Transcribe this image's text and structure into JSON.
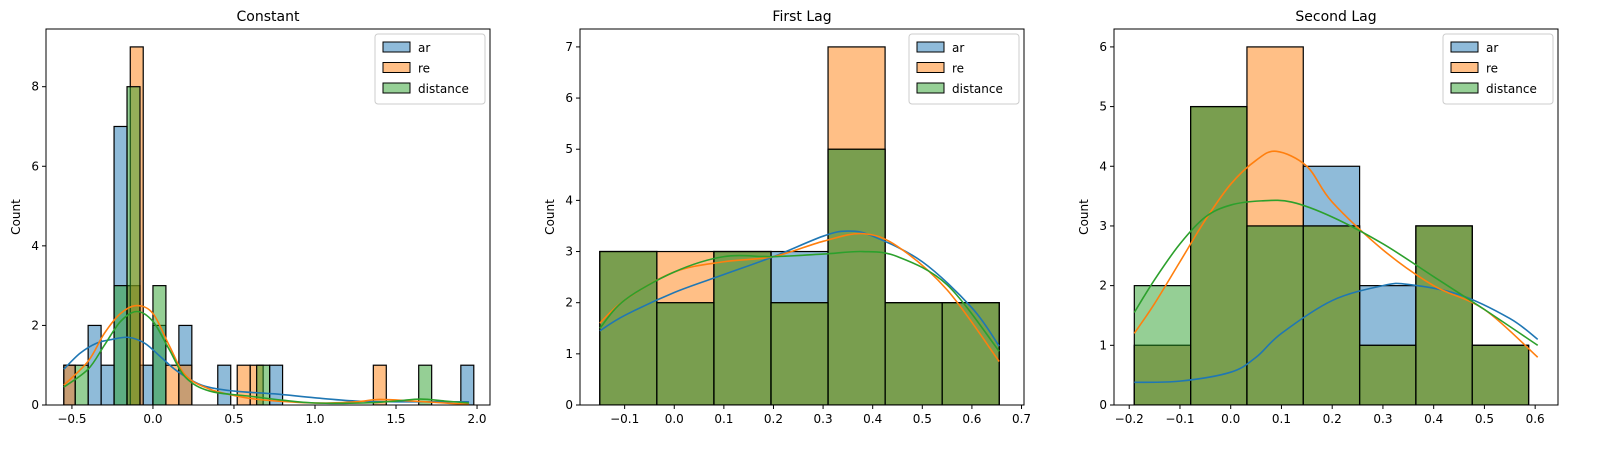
{
  "chart_data": [
    {
      "type": "histogram",
      "title": "Constant",
      "xlabel": "",
      "ylabel": "Count",
      "xlim": [
        -0.66,
        2.08
      ],
      "ylim": [
        0,
        9.45
      ],
      "xticks": [
        -0.5,
        0.0,
        0.5,
        1.0,
        1.5,
        2.0
      ],
      "yticks": [
        0,
        2,
        4,
        6,
        8
      ],
      "legend": "top-right",
      "series": [
        {
          "name": "ar",
          "color": "#1f77b4",
          "bins": [
            [
              -0.55,
              -0.48,
              1
            ],
            [
              -0.4,
              -0.32,
              2
            ],
            [
              -0.32,
              -0.24,
              1
            ],
            [
              -0.24,
              -0.16,
              7
            ],
            [
              -0.16,
              -0.08,
              3
            ],
            [
              -0.08,
              0.0,
              1
            ],
            [
              0.0,
              0.08,
              2
            ],
            [
              0.16,
              0.24,
              2
            ],
            [
              0.4,
              0.48,
              1
            ],
            [
              0.72,
              0.8,
              1
            ],
            [
              1.9,
              1.98,
              1
            ]
          ],
          "kde": [
            [
              -0.55,
              0.9
            ],
            [
              -0.45,
              1.3
            ],
            [
              -0.35,
              1.55
            ],
            [
              -0.25,
              1.65
            ],
            [
              -0.15,
              1.7
            ],
            [
              -0.05,
              1.55
            ],
            [
              0.05,
              1.2
            ],
            [
              0.15,
              0.85
            ],
            [
              0.3,
              0.5
            ],
            [
              0.5,
              0.35
            ],
            [
              0.75,
              0.28
            ],
            [
              1.0,
              0.18
            ],
            [
              1.25,
              0.1
            ],
            [
              1.5,
              0.08
            ],
            [
              1.75,
              0.08
            ],
            [
              1.95,
              0.08
            ]
          ]
        },
        {
          "name": "re",
          "color": "#ff7f0e",
          "bins": [
            [
              -0.55,
              -0.48,
              1
            ],
            [
              -0.16,
              -0.08,
              3
            ],
            [
              -0.14,
              -0.06,
              9
            ],
            [
              0.08,
              0.16,
              1
            ],
            [
              0.16,
              0.24,
              1
            ],
            [
              0.52,
              0.6,
              1
            ],
            [
              0.6,
              0.68,
              1
            ],
            [
              1.36,
              1.44,
              1
            ]
          ],
          "kde": [
            [
              -0.55,
              0.5
            ],
            [
              -0.4,
              1.1
            ],
            [
              -0.3,
              1.8
            ],
            [
              -0.2,
              2.3
            ],
            [
              -0.1,
              2.5
            ],
            [
              0.0,
              2.3
            ],
            [
              0.1,
              1.5
            ],
            [
              0.2,
              0.75
            ],
            [
              0.35,
              0.4
            ],
            [
              0.55,
              0.2
            ],
            [
              0.7,
              0.12
            ],
            [
              1.0,
              0.05
            ],
            [
              1.25,
              0.08
            ],
            [
              1.4,
              0.14
            ],
            [
              1.6,
              0.1
            ],
            [
              1.8,
              0.05
            ],
            [
              1.95,
              0.02
            ]
          ]
        },
        {
          "name": "distance",
          "color": "#2ca02c",
          "bins": [
            [
              -0.48,
              -0.4,
              1
            ],
            [
              -0.24,
              -0.16,
              3
            ],
            [
              -0.16,
              -0.08,
              8
            ],
            [
              0.0,
              0.08,
              3
            ],
            [
              0.64,
              0.72,
              1
            ],
            [
              1.64,
              1.72,
              1
            ]
          ],
          "kde": [
            [
              -0.55,
              0.45
            ],
            [
              -0.4,
              0.9
            ],
            [
              -0.3,
              1.5
            ],
            [
              -0.2,
              2.1
            ],
            [
              -0.1,
              2.35
            ],
            [
              0.0,
              2.1
            ],
            [
              0.1,
              1.4
            ],
            [
              0.2,
              0.7
            ],
            [
              0.35,
              0.35
            ],
            [
              0.6,
              0.22
            ],
            [
              0.8,
              0.12
            ],
            [
              1.0,
              0.05
            ],
            [
              1.3,
              0.05
            ],
            [
              1.5,
              0.1
            ],
            [
              1.65,
              0.15
            ],
            [
              1.8,
              0.1
            ],
            [
              1.95,
              0.05
            ]
          ]
        }
      ]
    },
    {
      "type": "histogram",
      "title": "First Lag",
      "xlabel": "",
      "ylabel": "Count",
      "xlim": [
        -0.19,
        0.705
      ],
      "ylim": [
        0,
        7.35
      ],
      "xticks": [
        -0.1,
        0.0,
        0.1,
        0.2,
        0.3,
        0.4,
        0.5,
        0.6,
        0.7
      ],
      "yticks": [
        0,
        1,
        2,
        3,
        4,
        5,
        6,
        7
      ],
      "legend": "top-right",
      "series": [
        {
          "name": "ar",
          "color": "#1f77b4",
          "bins": [
            [
              -0.15,
              -0.035,
              3
            ],
            [
              -0.035,
              0.08,
              2
            ],
            [
              0.08,
              0.195,
              3
            ],
            [
              0.195,
              0.31,
              3
            ],
            [
              0.31,
              0.425,
              5
            ],
            [
              0.425,
              0.54,
              2
            ],
            [
              0.54,
              0.655,
              2
            ]
          ],
          "kde": [
            [
              -0.15,
              1.45
            ],
            [
              -0.1,
              1.75
            ],
            [
              0.0,
              2.2
            ],
            [
              0.1,
              2.55
            ],
            [
              0.2,
              2.9
            ],
            [
              0.3,
              3.3
            ],
            [
              0.35,
              3.4
            ],
            [
              0.4,
              3.3
            ],
            [
              0.5,
              2.8
            ],
            [
              0.6,
              1.9
            ],
            [
              0.655,
              1.15
            ]
          ]
        },
        {
          "name": "re",
          "color": "#ff7f0e",
          "bins": [
            [
              -0.15,
              -0.035,
              3
            ],
            [
              -0.035,
              0.08,
              3
            ],
            [
              0.08,
              0.195,
              3
            ],
            [
              0.195,
              0.31,
              2
            ],
            [
              0.31,
              0.425,
              7
            ],
            [
              0.425,
              0.54,
              2
            ],
            [
              0.54,
              0.655,
              2
            ]
          ],
          "kde": [
            [
              -0.15,
              1.6
            ],
            [
              -0.1,
              2.05
            ],
            [
              0.0,
              2.6
            ],
            [
              0.1,
              2.8
            ],
            [
              0.2,
              2.9
            ],
            [
              0.3,
              3.2
            ],
            [
              0.38,
              3.35
            ],
            [
              0.45,
              3.1
            ],
            [
              0.55,
              2.25
            ],
            [
              0.655,
              0.85
            ]
          ]
        },
        {
          "name": "distance",
          "color": "#2ca02c",
          "bins": [
            [
              -0.15,
              -0.035,
              3
            ],
            [
              -0.035,
              0.08,
              2
            ],
            [
              0.08,
              0.195,
              3
            ],
            [
              0.195,
              0.31,
              2
            ],
            [
              0.31,
              0.425,
              5
            ],
            [
              0.425,
              0.54,
              2
            ],
            [
              0.54,
              0.655,
              2
            ]
          ],
          "kde": [
            [
              -0.15,
              1.5
            ],
            [
              -0.1,
              2.05
            ],
            [
              0.0,
              2.6
            ],
            [
              0.1,
              2.9
            ],
            [
              0.2,
              2.9
            ],
            [
              0.3,
              2.95
            ],
            [
              0.38,
              3.0
            ],
            [
              0.45,
              2.9
            ],
            [
              0.55,
              2.35
            ],
            [
              0.655,
              1.05
            ]
          ]
        }
      ]
    },
    {
      "type": "histogram",
      "title": "Second Lag",
      "xlabel": "",
      "ylabel": "Count",
      "xlim": [
        -0.23,
        0.645
      ],
      "ylim": [
        0,
        6.3
      ],
      "xticks": [
        -0.2,
        -0.1,
        0.0,
        0.1,
        0.2,
        0.3,
        0.4,
        0.5,
        0.6
      ],
      "yticks": [
        0,
        1,
        2,
        3,
        4,
        5,
        6
      ],
      "legend": "top-right",
      "series": [
        {
          "name": "ar",
          "color": "#1f77b4",
          "bins": [
            [
              -0.19,
              -0.079,
              1
            ],
            [
              -0.079,
              0.032,
              5
            ],
            [
              0.032,
              0.143,
              3
            ],
            [
              0.143,
              0.254,
              4
            ],
            [
              0.254,
              0.365,
              2
            ],
            [
              0.365,
              0.476,
              3
            ],
            [
              0.476,
              0.587,
              1
            ]
          ],
          "kde": [
            [
              -0.19,
              0.38
            ],
            [
              -0.1,
              0.4
            ],
            [
              0.0,
              0.55
            ],
            [
              0.05,
              0.8
            ],
            [
              0.1,
              1.2
            ],
            [
              0.2,
              1.75
            ],
            [
              0.3,
              2.0
            ],
            [
              0.35,
              2.02
            ],
            [
              0.45,
              1.85
            ],
            [
              0.55,
              1.45
            ],
            [
              0.605,
              1.1
            ]
          ]
        },
        {
          "name": "re",
          "color": "#ff7f0e",
          "bins": [
            [
              -0.19,
              -0.079,
              1
            ],
            [
              -0.079,
              0.032,
              5
            ],
            [
              0.032,
              0.143,
              6
            ],
            [
              0.143,
              0.254,
              3
            ],
            [
              0.254,
              0.365,
              1
            ],
            [
              0.365,
              0.476,
              3
            ],
            [
              0.476,
              0.587,
              1
            ]
          ],
          "kde": [
            [
              -0.19,
              1.2
            ],
            [
              -0.15,
              1.7
            ],
            [
              -0.1,
              2.4
            ],
            [
              -0.05,
              3.1
            ],
            [
              0.0,
              3.7
            ],
            [
              0.05,
              4.1
            ],
            [
              0.09,
              4.25
            ],
            [
              0.15,
              4.0
            ],
            [
              0.2,
              3.4
            ],
            [
              0.3,
              2.6
            ],
            [
              0.4,
              2.0
            ],
            [
              0.5,
              1.6
            ],
            [
              0.605,
              0.8
            ]
          ]
        },
        {
          "name": "distance",
          "color": "#2ca02c",
          "bins": [
            [
              -0.19,
              -0.079,
              2
            ],
            [
              -0.079,
              0.032,
              5
            ],
            [
              0.032,
              0.143,
              3
            ],
            [
              0.143,
              0.254,
              3
            ],
            [
              0.254,
              0.365,
              1
            ],
            [
              0.365,
              0.476,
              3
            ],
            [
              0.476,
              0.587,
              1
            ]
          ],
          "kde": [
            [
              -0.19,
              1.55
            ],
            [
              -0.15,
              2.1
            ],
            [
              -0.1,
              2.7
            ],
            [
              -0.05,
              3.15
            ],
            [
              0.0,
              3.35
            ],
            [
              0.06,
              3.42
            ],
            [
              0.12,
              3.4
            ],
            [
              0.2,
              3.15
            ],
            [
              0.3,
              2.7
            ],
            [
              0.4,
              2.15
            ],
            [
              0.5,
              1.6
            ],
            [
              0.605,
              1.0
            ]
          ]
        }
      ]
    }
  ]
}
